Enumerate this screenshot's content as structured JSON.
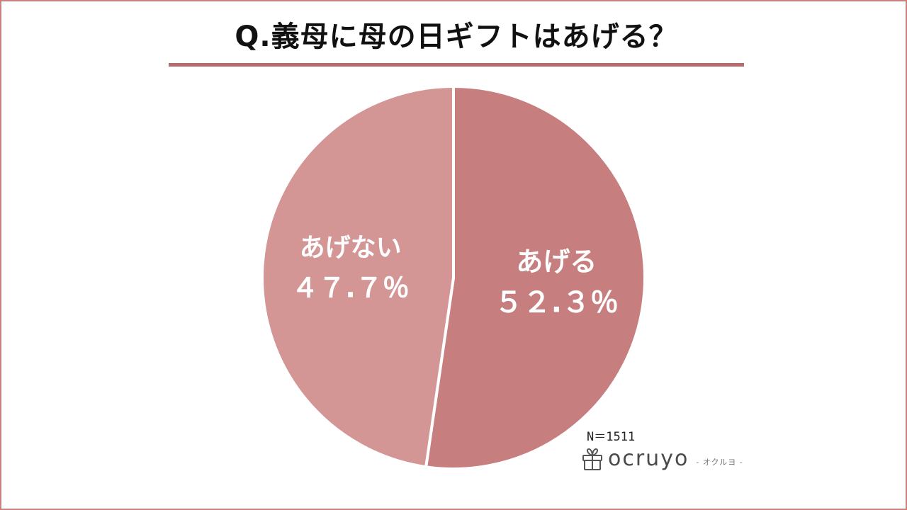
{
  "title": "Q.義母に母の日ギフトはあげる？",
  "sample_note": "N＝1511",
  "brand": {
    "name": "ocruyo",
    "kana": "- オクルヨ -",
    "icon": "gift-box-icon"
  },
  "colors": {
    "border": "#c98080",
    "rule": "#b86b6b",
    "slice_yes": "#c77e7e",
    "slice_no": "#d49595"
  },
  "chart_data": {
    "type": "pie",
    "slices": [
      {
        "label": "あげる",
        "value": 52.3,
        "value_label": "５２.３％"
      },
      {
        "label": "あげない",
        "value": 47.7,
        "value_label": "４７.７％"
      }
    ]
  }
}
